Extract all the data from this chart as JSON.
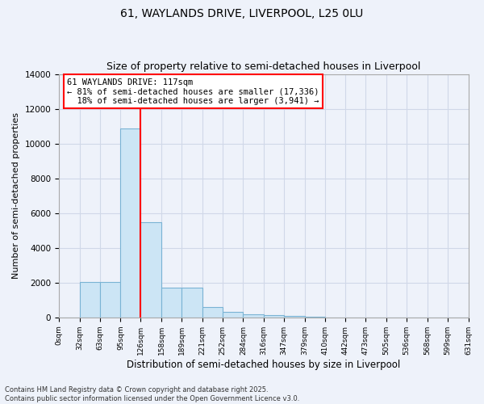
{
  "title": "61, WAYLANDS DRIVE, LIVERPOOL, L25 0LU",
  "subtitle": "Size of property relative to semi-detached houses in Liverpool",
  "xlabel": "Distribution of semi-detached houses by size in Liverpool",
  "ylabel": "Number of semi-detached properties",
  "bin_edges": [
    0,
    32,
    63,
    95,
    126,
    158,
    189,
    221,
    252,
    284,
    316,
    347,
    379,
    410,
    442,
    473,
    505,
    536,
    568,
    599,
    631
  ],
  "bar_heights": [
    0,
    2050,
    2050,
    10900,
    5500,
    1700,
    1700,
    620,
    320,
    200,
    150,
    100,
    50,
    10,
    5,
    2,
    1,
    0,
    0,
    0
  ],
  "bar_color": "#cce5f5",
  "bar_edge_color": "#7ab3d4",
  "redline_x": 126,
  "redline_color": "red",
  "annotation_text": "61 WAYLANDS DRIVE: 117sqm\n← 81% of semi-detached houses are smaller (17,336)\n  18% of semi-detached houses are larger (3,941) →",
  "annotation_box_edgecolor": "red",
  "annotation_box_facecolor": "white",
  "ylim": [
    0,
    14000
  ],
  "yticks": [
    0,
    2000,
    4000,
    6000,
    8000,
    10000,
    12000,
    14000
  ],
  "grid_color": "#d0d8e8",
  "background_color": "#eef2fa",
  "footnote": "Contains HM Land Registry data © Crown copyright and database right 2025.\nContains public sector information licensed under the Open Government Licence v3.0.",
  "title_fontsize": 10,
  "subtitle_fontsize": 9,
  "tick_label_fontsize": 6.5,
  "ylabel_fontsize": 8,
  "xlabel_fontsize": 8.5,
  "annotation_fontsize": 7.5,
  "footnote_fontsize": 6
}
